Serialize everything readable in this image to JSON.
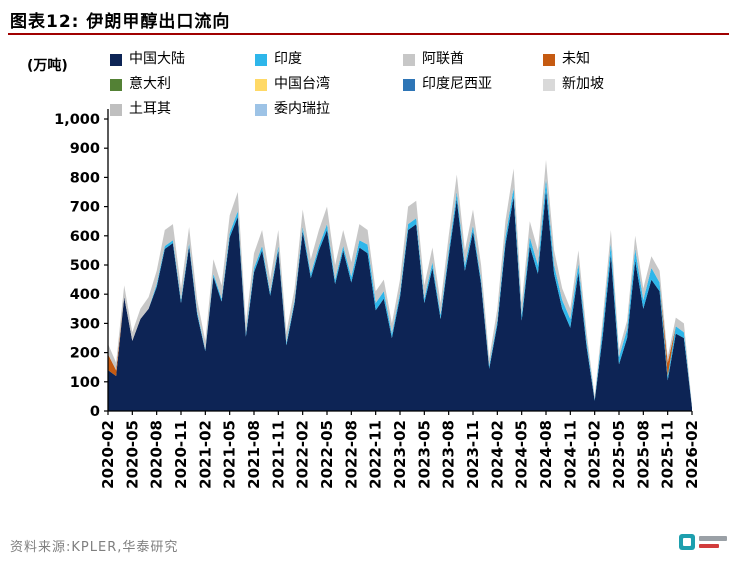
{
  "header": {
    "title": "图表12:  伊朗甲醇出口流向",
    "rule_color": "#a00000"
  },
  "unit_label": "(万吨)",
  "legend": {
    "position": "top",
    "items": [
      {
        "label": "中国大陆",
        "color": "#0d2455"
      },
      {
        "label": "印度",
        "color": "#2eb6ea"
      },
      {
        "label": "阿联酋",
        "color": "#c7c7c7"
      },
      {
        "label": "未知",
        "color": "#c55a11"
      },
      {
        "label": "意大利",
        "color": "#538135"
      },
      {
        "label": "中国台湾",
        "color": "#ffd966"
      },
      {
        "label": "印度尼西亚",
        "color": "#2e75b6"
      },
      {
        "label": "新加坡",
        "color": "#d9d9d9"
      },
      {
        "label": "土耳其",
        "color": "#bfbfbf"
      },
      {
        "label": "委内瑞拉",
        "color": "#9dc3e6"
      }
    ]
  },
  "axes": {
    "y_ticks": [
      "0",
      "100",
      "200",
      "300",
      "400",
      "500",
      "600",
      "700",
      "800",
      "900",
      "1,000"
    ],
    "x_tick_interval": 3
  },
  "source": {
    "text": "资料来源:KPLER,华泰研究"
  },
  "chart_data": {
    "type": "area",
    "stacked": true,
    "title": "伊朗甲醇出口流向",
    "xlabel": "",
    "ylabel": "(万吨)",
    "ylim": [
      0,
      1000
    ],
    "grid": false,
    "legend_position": "top",
    "stack_order": "bottom_to_top; series with empty values are too small to read at this scale",
    "x": [
      "2020-02",
      "2020-03",
      "2020-04",
      "2020-05",
      "2020-06",
      "2020-07",
      "2020-08",
      "2020-09",
      "2020-10",
      "2020-11",
      "2020-12",
      "2021-01",
      "2021-02",
      "2021-03",
      "2021-04",
      "2021-05",
      "2021-06",
      "2021-07",
      "2021-08",
      "2021-09",
      "2021-10",
      "2021-11",
      "2021-12",
      "2022-01",
      "2022-02",
      "2022-03",
      "2022-04",
      "2022-05",
      "2022-06",
      "2022-07",
      "2022-08",
      "2022-09",
      "2022-10",
      "2022-11",
      "2022-12",
      "2023-01",
      "2023-02",
      "2023-03",
      "2023-04",
      "2023-05",
      "2023-06",
      "2023-07",
      "2023-08",
      "2023-09",
      "2023-10",
      "2023-11",
      "2023-12",
      "2024-01",
      "2024-02",
      "2024-03",
      "2024-04",
      "2024-05",
      "2024-06",
      "2024-07",
      "2024-08",
      "2024-09",
      "2024-10",
      "2024-11",
      "2024-12",
      "2025-01",
      "2025-02",
      "2025-03",
      "2025-04",
      "2025-05",
      "2025-06",
      "2025-07",
      "2025-08",
      "2025-09",
      "2025-10",
      "2025-11",
      "2025-12",
      "2026-01",
      "2026-02"
    ],
    "series": [
      {
        "name": "中国大陆",
        "color": "#0d2455",
        "values": [
          140,
          120,
          390,
          240,
          315,
          350,
          425,
          555,
          575,
          370,
          565,
          330,
          205,
          460,
          375,
          595,
          665,
          255,
          475,
          550,
          395,
          550,
          225,
          370,
          615,
          455,
          550,
          620,
          435,
          550,
          440,
          560,
          540,
          345,
          385,
          250,
          390,
          620,
          640,
          370,
          490,
          315,
          530,
          725,
          480,
          615,
          435,
          145,
          295,
          570,
          735,
          310,
          565,
          470,
          755,
          470,
          350,
          285,
          475,
          220,
          35,
          260,
          535,
          160,
          250,
          515,
          350,
          450,
          410,
          105,
          265,
          250,
          12
        ]
      },
      {
        "name": "印度",
        "color": "#2eb6ea",
        "values": [
          0,
          0,
          0,
          0,
          0,
          0,
          10,
          10,
          10,
          10,
          10,
          10,
          5,
          10,
          10,
          15,
          20,
          10,
          15,
          15,
          10,
          15,
          10,
          10,
          15,
          15,
          15,
          20,
          15,
          15,
          20,
          25,
          30,
          25,
          25,
          15,
          15,
          20,
          20,
          15,
          20,
          15,
          20,
          25,
          20,
          20,
          15,
          10,
          15,
          25,
          30,
          20,
          30,
          30,
          40,
          30,
          30,
          30,
          30,
          20,
          5,
          30,
          40,
          25,
          30,
          40,
          30,
          40,
          30,
          15,
          25,
          20,
          3
        ]
      },
      {
        "name": "未知",
        "color": "#c55a11",
        "values": [
          55,
          20,
          0,
          0,
          0,
          0,
          0,
          0,
          0,
          0,
          0,
          0,
          0,
          0,
          0,
          0,
          0,
          0,
          0,
          0,
          0,
          0,
          0,
          0,
          0,
          0,
          0,
          0,
          0,
          0,
          0,
          0,
          0,
          0,
          0,
          0,
          0,
          0,
          0,
          0,
          0,
          0,
          0,
          0,
          0,
          0,
          0,
          0,
          0,
          0,
          0,
          0,
          0,
          0,
          0,
          0,
          0,
          0,
          0,
          0,
          0,
          0,
          0,
          0,
          0,
          0,
          0,
          0,
          0,
          45,
          0,
          0,
          0
        ]
      },
      {
        "name": "阿联酋",
        "color": "#c7c7c7",
        "values": [
          35,
          25,
          40,
          30,
          35,
          40,
          45,
          55,
          55,
          40,
          55,
          40,
          30,
          50,
          45,
          60,
          65,
          35,
          50,
          55,
          45,
          55,
          35,
          40,
          60,
          50,
          55,
          60,
          50,
          55,
          50,
          55,
          50,
          40,
          40,
          35,
          45,
          60,
          60,
          45,
          50,
          40,
          50,
          60,
          50,
          55,
          50,
          25,
          40,
          55,
          65,
          40,
          55,
          50,
          65,
          50,
          40,
          35,
          45,
          30,
          10,
          30,
          45,
          25,
          30,
          45,
          40,
          40,
          40,
          20,
          30,
          30,
          5
        ]
      },
      {
        "name": "意大利",
        "color": "#538135",
        "values": []
      },
      {
        "name": "中国台湾",
        "color": "#ffd966",
        "values": []
      },
      {
        "name": "印度尼西亚",
        "color": "#2e75b6",
        "values": []
      },
      {
        "name": "新加坡",
        "color": "#d9d9d9",
        "values": []
      },
      {
        "name": "土耳其",
        "color": "#bfbfbf",
        "values": []
      },
      {
        "name": "委内瑞拉",
        "color": "#9dc3e6",
        "values": []
      }
    ]
  }
}
